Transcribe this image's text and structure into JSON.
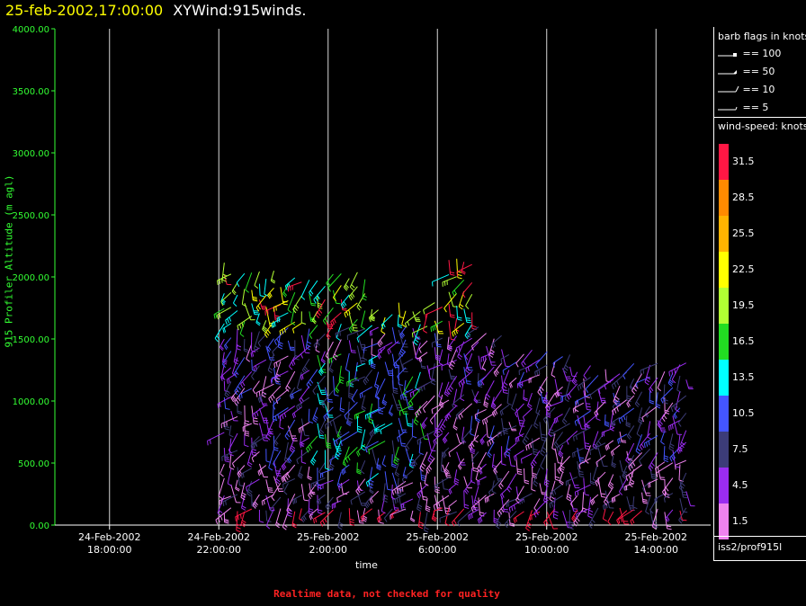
{
  "title": {
    "timestamp": "25-feb-2002,17:00:00",
    "name": "XYWind:915winds."
  },
  "chart_data": {
    "type": "wind-barb",
    "xlabel": "time",
    "ylabel": "915 Profiler Altitude (m agl)",
    "ylim": [
      0,
      4000
    ],
    "xlim_hours": [
      16,
      40
    ],
    "yticks": [
      "4000.00",
      "3500.00",
      "3000.00",
      "2500.00",
      "2000.00",
      "1500.00",
      "1000.00",
      "500.00",
      "0.00"
    ],
    "xticks": [
      {
        "hour": 18,
        "date": "24-Feb-2002",
        "time": "18:00:00"
      },
      {
        "hour": 22,
        "date": "24-Feb-2002",
        "time": "22:00:00"
      },
      {
        "hour": 26,
        "date": "25-Feb-2002",
        "time": "2:00:00"
      },
      {
        "hour": 30,
        "date": "25-Feb-2002",
        "time": "6:00:00"
      },
      {
        "hour": 34,
        "date": "25-Feb-2002",
        "time": "10:00:00"
      },
      {
        "hour": 38,
        "date": "25-Feb-2002",
        "time": "14:00:00"
      }
    ],
    "grid": "vertical",
    "data_hours": [
      22.2,
      39.3
    ],
    "data_altitude": [
      100,
      2200
    ]
  },
  "barb_legend": {
    "title": "barb flags in knots",
    "items": [
      {
        "label": "== 100",
        "kind": "flag"
      },
      {
        "label": "== 50",
        "kind": "pennant"
      },
      {
        "label": "== 10",
        "kind": "full"
      },
      {
        "label": "== 5",
        "kind": "half"
      }
    ]
  },
  "colorbar": {
    "title": "wind-speed: knots",
    "bins": [
      {
        "label": "31.5",
        "color": "#ff1744"
      },
      {
        "label": "28.5",
        "color": "#ff8a00"
      },
      {
        "label": "25.5",
        "color": "#ffb300"
      },
      {
        "label": "22.5",
        "color": "#ffff00"
      },
      {
        "label": "19.5",
        "color": "#b2ff33"
      },
      {
        "label": "16.5",
        "color": "#22dd22"
      },
      {
        "label": "13.5",
        "color": "#00ffff"
      },
      {
        "label": "10.5",
        "color": "#4455ff"
      },
      {
        "label": "7.5",
        "color": "#3c3c78"
      },
      {
        "label": "4.5",
        "color": "#9a2cf0"
      },
      {
        "label": "1.5",
        "color": "#ee82ee"
      }
    ]
  },
  "source": "iss2/prof915l",
  "notice": "Realtime data, not checked for quality"
}
